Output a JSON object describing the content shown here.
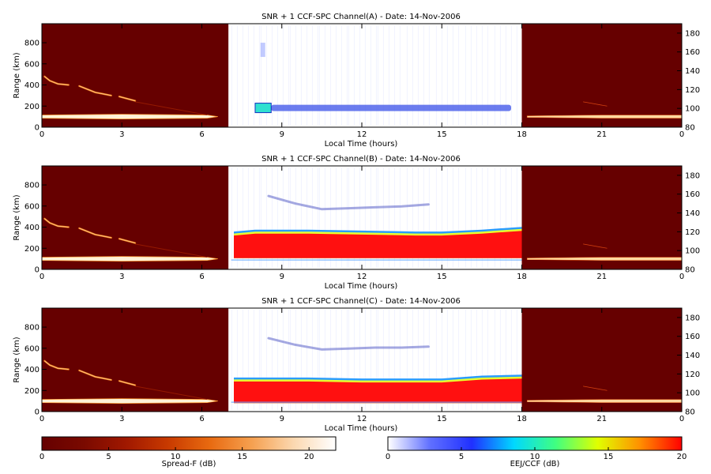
{
  "chart_data": [
    {
      "type": "heatmap",
      "title": "SNR + 1 CCF-SPC Channel(A) - Date: 14-Nov-2006",
      "xlabel": "Local Time (hours)",
      "ylabel": "Range (km)",
      "xticks": [
        "0",
        "3",
        "6",
        "9",
        "12",
        "15",
        "18",
        "21",
        "0"
      ],
      "yticks_left": [
        "0",
        "200",
        "400",
        "600",
        "800"
      ],
      "yticks_right": [
        "80",
        "100",
        "120",
        "140",
        "160",
        "180"
      ],
      "x_range_hours": [
        0,
        24
      ],
      "ylim_left_km": [
        0,
        980
      ],
      "ylim_right_km": [
        80,
        190
      ],
      "ccf_window_hours": [
        7,
        18
      ],
      "spreadf_layer_range_km": 100,
      "spreadf_echo_traces": [
        {
          "x": [
            0.1,
            0.3,
            0.6,
            1.0
          ],
          "y": [
            480,
            440,
            410,
            400
          ]
        },
        {
          "x": [
            1.4,
            2.0,
            2.6
          ],
          "y": [
            390,
            330,
            300
          ]
        },
        {
          "x": [
            2.9,
            3.2,
            3.5
          ],
          "y": [
            290,
            270,
            250
          ]
        }
      ],
      "ccf_echo_band_range_km": [
        100,
        101
      ]
    },
    {
      "type": "heatmap",
      "title": "SNR + 1 CCF-SPC Channel(B) - Date: 14-Nov-2006",
      "xlabel": "Local Time (hours)",
      "ylabel": "Range (km)",
      "xticks": [
        "0",
        "3",
        "6",
        "9",
        "12",
        "15",
        "18",
        "21",
        "0"
      ],
      "yticks_left": [
        "0",
        "200",
        "400",
        "600",
        "800"
      ],
      "yticks_right": [
        "80",
        "100",
        "120",
        "140",
        "160",
        "180"
      ],
      "x_range_hours": [
        0,
        24
      ],
      "ylim_left_km": [
        0,
        980
      ],
      "ylim_right_km": [
        80,
        190
      ],
      "ccf_window_hours": [
        7,
        18
      ],
      "ccf_saturated_band_top_km": [
        116,
        118,
        118,
        117,
        116,
        116,
        118,
        121
      ],
      "ccf_saturated_band_bottom_km": [
        92,
        92
      ],
      "ccf_band_hours": [
        7.2,
        8,
        10,
        12,
        14,
        15,
        16.5,
        18
      ],
      "ccf_arc_hours": [
        8.5,
        9.5,
        10.5,
        11.5,
        12.5,
        13.5,
        14.5
      ],
      "ccf_arc_range_km": [
        158,
        150,
        144,
        145,
        146,
        147,
        149
      ]
    },
    {
      "type": "heatmap",
      "title": "SNR + 1 CCF-SPC Channel(C) - Date: 14-Nov-2006",
      "xlabel": "Local Time (hours)",
      "ylabel": "Range (km)",
      "xticks": [
        "0",
        "3",
        "6",
        "9",
        "12",
        "15",
        "18",
        "21",
        "0"
      ],
      "yticks_left": [
        "0",
        "200",
        "400",
        "600",
        "800"
      ],
      "yticks_right": [
        "80",
        "100",
        "120",
        "140",
        "160",
        "180"
      ],
      "x_range_hours": [
        0,
        24
      ],
      "ylim_left_km": [
        0,
        980
      ],
      "ylim_right_km": [
        80,
        190
      ],
      "ccf_window_hours": [
        7,
        18
      ],
      "ccf_saturated_band_top_km": [
        112,
        112,
        112,
        111,
        111,
        111,
        114,
        115
      ],
      "ccf_saturated_band_bottom_km": [
        89,
        89
      ],
      "ccf_band_hours": [
        7.2,
        8,
        10,
        12,
        14,
        15,
        16.5,
        18
      ],
      "ccf_arc_hours": [
        8.5,
        9.5,
        10.5,
        11.5,
        12.5,
        13.5,
        14.5
      ],
      "ccf_arc_range_km": [
        158,
        151,
        146,
        147,
        148,
        148,
        149
      ]
    }
  ],
  "colorbars": {
    "left": {
      "label": "Spread-F (dB)",
      "ticks": [
        "0",
        "5",
        "10",
        "15",
        "20"
      ],
      "range": [
        0,
        22
      ],
      "colors": [
        "#660000",
        "#7a0a00",
        "#a01800",
        "#c83a00",
        "#e86a10",
        "#f5a050",
        "#fbd8b0",
        "#ffffff"
      ]
    },
    "right": {
      "label": "EEJ/CCF (dB)",
      "ticks": [
        "0",
        "5",
        "10",
        "15",
        "20"
      ],
      "range": [
        0,
        20
      ],
      "colors": [
        "#ffffff",
        "#6070ff",
        "#2030ff",
        "#00d8ff",
        "#40ff80",
        "#e0ff00",
        "#ff9000",
        "#ff0000"
      ]
    }
  },
  "colors": {
    "spreadf_background": "#660000",
    "ccf_background": "#ffffff",
    "saturated": "#ff1010",
    "axis": "#000000"
  }
}
